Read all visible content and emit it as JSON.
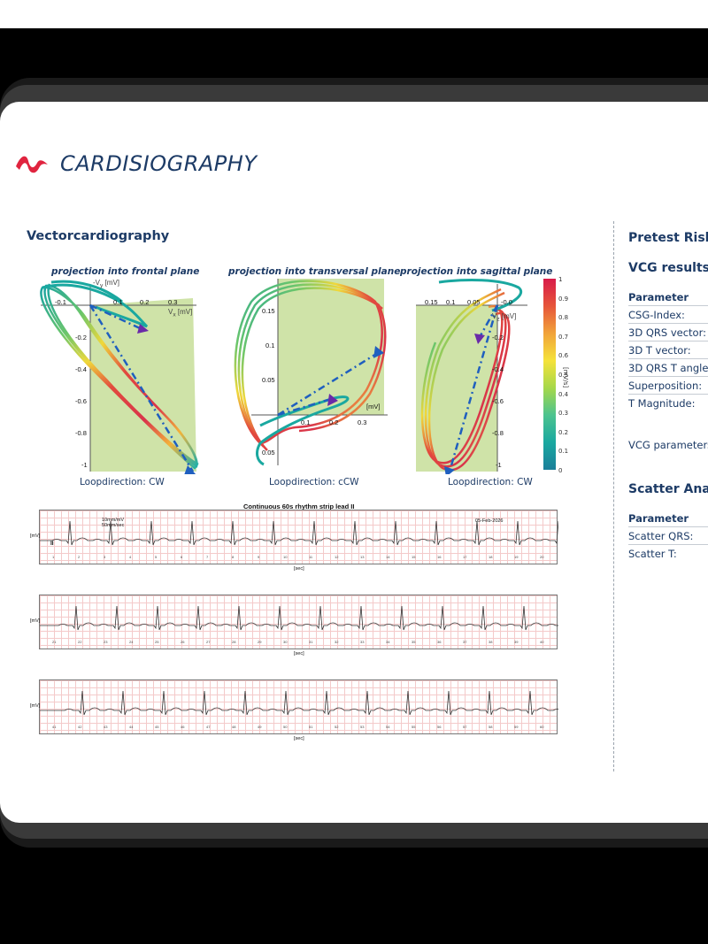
{
  "brand": {
    "name": "CARDISIOGRAPHY"
  },
  "vcg": {
    "title": "Vectorcardiography",
    "plots": [
      {
        "title": "projection into frontal plane",
        "loop_direction": "Loopdirection: CW",
        "x_ticks": [
          "-0.1",
          "0.1",
          "0.2",
          "0.3"
        ],
        "y_ticks": [
          "-0.2",
          "-0.4",
          "-0.6",
          "-0.8",
          "-1"
        ],
        "x_label": "V",
        "x_sub": "x",
        "x_unit": "[mV]",
        "y_label": "-V",
        "y_sub": "y",
        "y_unit": "[mV]"
      },
      {
        "title": "projection into transversal plane",
        "loop_direction": "Loopdirection: cCW",
        "x_ticks": [
          "0.1",
          "0.2",
          "0.3"
        ],
        "y_ticks": [
          "0.15",
          "0.1",
          "0.05",
          "0.05"
        ],
        "x_unit": "[mV]"
      },
      {
        "title": "projection into sagittal plane",
        "loop_direction": "Loopdirection: CW",
        "x_ticks": [
          "0.15",
          "0.1",
          "0.05",
          "-0.0"
        ],
        "y_ticks": [
          "-0.2",
          "-0.4",
          "-0.6",
          "-0.8",
          "-1"
        ],
        "y_label": "V",
        "y_sub": "z",
        "y_unit": "[mV]"
      }
    ],
    "colorbar": {
      "ticks": [
        "1",
        "0.9",
        "0.8",
        "0.7",
        "0.6",
        "0.5",
        "0.4",
        "0.3",
        "0.2",
        "0.1",
        "0"
      ],
      "label": "[mV/s]"
    }
  },
  "rhythm": {
    "caption": "Continuous 60s rhythm strip lead II",
    "scale_line1": "10mm/mV",
    "scale_line2": "50mm/sec",
    "date": "05-Feb-2026",
    "lead": "II",
    "axis_unit": "[mV]",
    "time_unit": "[sec]",
    "strip_tick_labels": [
      [
        "1",
        "2",
        "3",
        "4",
        "5",
        "6",
        "7",
        "8",
        "9",
        "10",
        "11",
        "12",
        "13",
        "14",
        "15",
        "16",
        "17",
        "18",
        "19",
        "20"
      ],
      [
        "21",
        "22",
        "23",
        "24",
        "25",
        "26",
        "27",
        "28",
        "29",
        "30",
        "31",
        "32",
        "33",
        "34",
        "35",
        "36",
        "37",
        "38",
        "39",
        "40"
      ],
      [
        "41",
        "42",
        "43",
        "44",
        "45",
        "46",
        "47",
        "48",
        "49",
        "50",
        "51",
        "52",
        "53",
        "54",
        "55",
        "56",
        "57",
        "58",
        "59",
        "60"
      ]
    ]
  },
  "right_panel": {
    "pretest_title": "Pretest Risk",
    "vcg_results_title": "VCG results",
    "param_header": "Parameter",
    "rows": [
      "CSG-Index:",
      "3D QRS vector:",
      "3D T vector:",
      "3D QRS T angle:",
      "Superposition:",
      "T Magnitude:"
    ],
    "vcg_note": "VCG parameters",
    "scatter_title": "Scatter Analy",
    "scatter_header": "Parameter",
    "scatter_rows": [
      "Scatter QRS:",
      "Scatter T:"
    ]
  },
  "colors": {
    "navy": "#1d3b66",
    "brand_red": "#e0243f",
    "plane_green": "#cfe3a8",
    "dash_blue": "#1f5fbf"
  }
}
